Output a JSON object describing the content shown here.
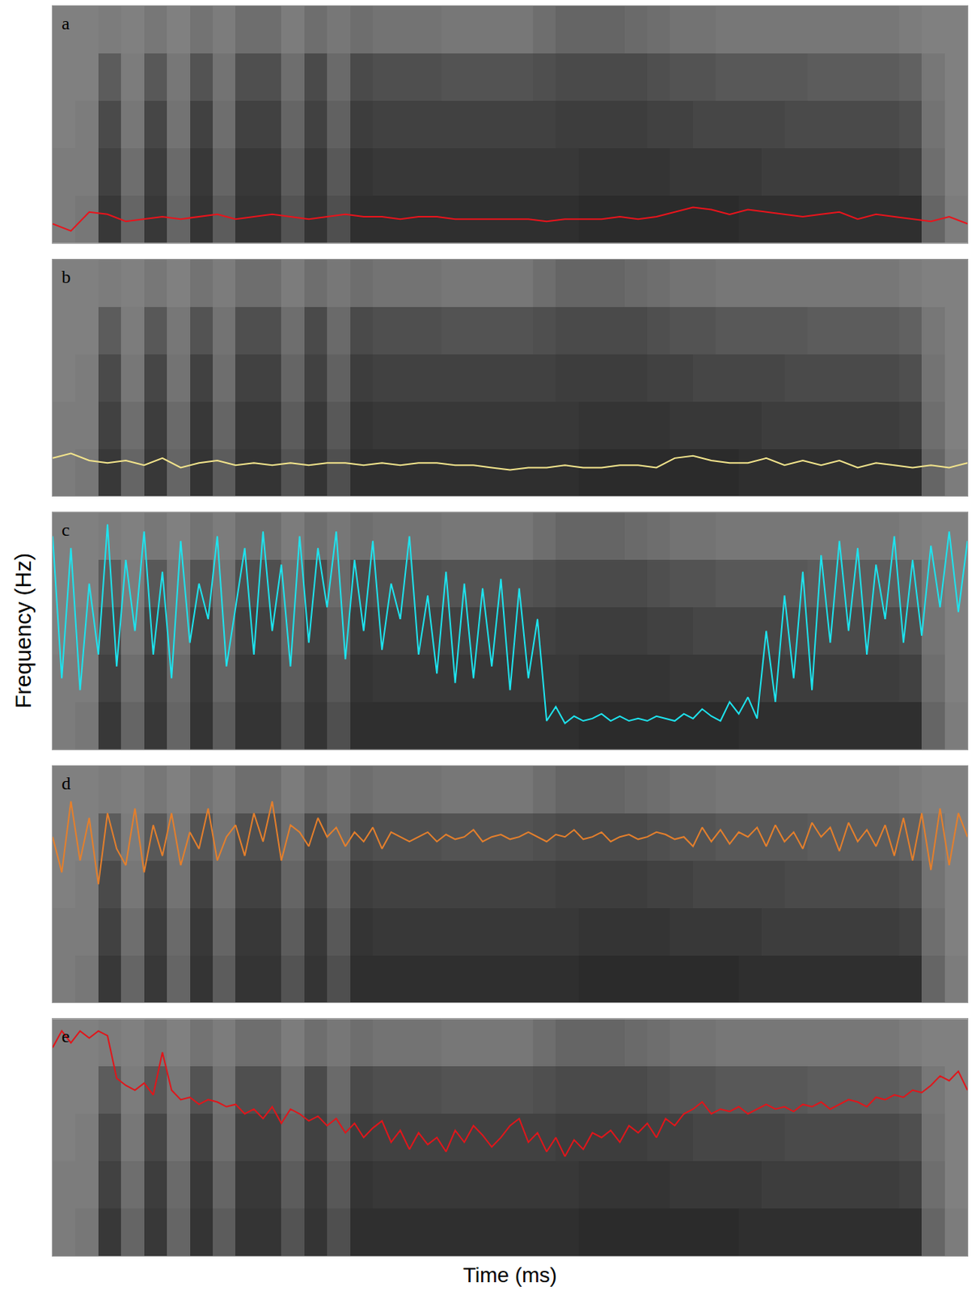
{
  "xlabel": "Time (ms)",
  "ylabel": "Frequency (Hz)",
  "spectrogram": {
    "x": [
      1.25,
      3.75,
      6.25,
      8.75,
      11.25,
      13.75,
      16.25,
      18.75,
      21.25,
      23.75,
      26.25,
      28.75,
      31.25,
      33.75,
      36.25,
      38.75,
      41.25,
      43.75,
      46.25,
      48.75,
      51.25,
      53.75,
      56.25,
      58.75,
      61.25,
      63.75,
      66.25,
      68.75,
      71.25,
      73.75,
      76.25,
      78.75,
      81.25,
      83.75,
      86.25,
      88.75,
      91.25,
      93.75,
      96.25,
      98.75
    ],
    "y": [
      10,
      30,
      50,
      70,
      90
    ],
    "zlim": [
      0,
      1
    ],
    "cells": [
      [
        0.05,
        0.1,
        0.8,
        0.3,
        0.8,
        0.3,
        0.85,
        0.4,
        0.85,
        0.85,
        0.5,
        0.85,
        0.55,
        0.9,
        0.9,
        0.9,
        0.9,
        0.9,
        0.9,
        0.9,
        0.9,
        0.9,
        0.9,
        0.95,
        0.95,
        0.95,
        0.95,
        0.95,
        0.95,
        0.95,
        0.9,
        0.9,
        0.9,
        0.9,
        0.9,
        0.9,
        0.9,
        0.9,
        0.3,
        0.05
      ],
      [
        0.05,
        0.05,
        0.7,
        0.2,
        0.75,
        0.25,
        0.8,
        0.3,
        0.8,
        0.8,
        0.4,
        0.8,
        0.45,
        0.85,
        0.8,
        0.8,
        0.8,
        0.8,
        0.8,
        0.8,
        0.8,
        0.8,
        0.8,
        0.85,
        0.85,
        0.85,
        0.85,
        0.8,
        0.8,
        0.8,
        0.8,
        0.75,
        0.75,
        0.75,
        0.75,
        0.75,
        0.75,
        0.7,
        0.2,
        0
      ],
      [
        0,
        0.05,
        0.6,
        0.1,
        0.65,
        0.15,
        0.7,
        0.2,
        0.7,
        0.7,
        0.3,
        0.7,
        0.35,
        0.75,
        0.7,
        0.7,
        0.7,
        0.7,
        0.7,
        0.7,
        0.7,
        0.7,
        0.75,
        0.75,
        0.75,
        0.75,
        0.7,
        0.7,
        0.65,
        0.65,
        0.65,
        0.65,
        0.6,
        0.6,
        0.6,
        0.6,
        0.6,
        0.55,
        0.15,
        0
      ],
      [
        0,
        0,
        0.4,
        0.05,
        0.45,
        0.1,
        0.5,
        0.15,
        0.55,
        0.55,
        0.2,
        0.6,
        0.25,
        0.6,
        0.55,
        0.55,
        0.55,
        0.5,
        0.5,
        0.5,
        0.5,
        0.55,
        0.6,
        0.6,
        0.6,
        0.6,
        0.55,
        0.5,
        0.5,
        0.45,
        0.45,
        0.45,
        0.45,
        0.4,
        0.4,
        0.4,
        0.4,
        0.35,
        0.1,
        0
      ],
      [
        0,
        0,
        0.05,
        0,
        0.1,
        0,
        0.15,
        0.05,
        0.2,
        0.2,
        0.05,
        0.2,
        0.1,
        0.2,
        0.15,
        0.15,
        0.15,
        0.1,
        0.1,
        0.1,
        0.1,
        0.2,
        0.3,
        0.3,
        0.3,
        0.25,
        0.2,
        0.15,
        0.15,
        0.1,
        0.1,
        0.1,
        0.1,
        0.1,
        0.1,
        0.1,
        0.1,
        0.05,
        0,
        0
      ]
    ]
  },
  "chart_data": [
    {
      "type": "line",
      "panel": "a",
      "xlim": [
        0,
        100
      ],
      "ylim": [
        0,
        100
      ],
      "xticks": [],
      "yticks": [],
      "tick_labels": false,
      "grid": false,
      "x": [
        0,
        2,
        4,
        6,
        8,
        10,
        12,
        14,
        16,
        18,
        20,
        22,
        24,
        26,
        28,
        30,
        32,
        34,
        36,
        38,
        40,
        42,
        44,
        46,
        48,
        50,
        52,
        54,
        56,
        58,
        60,
        62,
        64,
        66,
        68,
        70,
        72,
        74,
        76,
        78,
        80,
        82,
        84,
        86,
        88,
        90,
        92,
        94,
        96,
        98,
        100
      ],
      "series": [
        {
          "color": "#e8141c",
          "values": [
            8,
            5,
            13,
            12,
            9,
            10,
            11,
            10,
            11,
            12,
            10,
            11,
            12,
            11,
            10,
            11,
            12,
            11,
            11,
            10,
            11,
            11,
            10,
            10,
            10,
            10,
            10,
            9,
            10,
            10,
            10,
            11,
            10,
            11,
            13,
            15,
            14,
            12,
            14,
            13,
            12,
            11,
            12,
            13,
            10,
            12,
            11,
            10,
            9,
            11,
            8
          ]
        }
      ]
    },
    {
      "type": "line",
      "panel": "b",
      "xlim": [
        0,
        100
      ],
      "ylim": [
        0,
        100
      ],
      "xticks": [],
      "yticks": [],
      "tick_labels": false,
      "grid": false,
      "x": [
        0,
        2,
        4,
        6,
        8,
        10,
        12,
        14,
        16,
        18,
        20,
        22,
        24,
        26,
        28,
        30,
        32,
        34,
        36,
        38,
        40,
        42,
        44,
        46,
        48,
        50,
        52,
        54,
        56,
        58,
        60,
        62,
        64,
        66,
        68,
        70,
        72,
        74,
        76,
        78,
        80,
        82,
        84,
        86,
        88,
        90,
        92,
        94,
        96,
        98,
        100
      ],
      "series": [
        {
          "color": "#f3e48c",
          "values": [
            16,
            18,
            15,
            14,
            15,
            13,
            16,
            12,
            14,
            15,
            13,
            14,
            13,
            14,
            13,
            14,
            14,
            13,
            14,
            13,
            14,
            14,
            13,
            13,
            12,
            11,
            12,
            12,
            13,
            12,
            12,
            13,
            13,
            12,
            16,
            17,
            15,
            14,
            14,
            16,
            13,
            15,
            13,
            15,
            12,
            14,
            13,
            12,
            13,
            12,
            14
          ]
        }
      ]
    },
    {
      "type": "line",
      "panel": "c",
      "xlim": [
        0,
        100
      ],
      "ylim": [
        0,
        100
      ],
      "xticks": [],
      "yticks": [],
      "tick_labels": false,
      "grid": false,
      "x": [
        0,
        1,
        2,
        3,
        4,
        5,
        6,
        7,
        8,
        9,
        10,
        11,
        12,
        13,
        14,
        15,
        16,
        17,
        18,
        19,
        20,
        21,
        22,
        23,
        24,
        25,
        26,
        27,
        28,
        29,
        30,
        31,
        32,
        33,
        34,
        35,
        36,
        37,
        38,
        39,
        40,
        41,
        42,
        43,
        44,
        45,
        46,
        47,
        48,
        49,
        50,
        51,
        52,
        53,
        54,
        55,
        56,
        57,
        58,
        59,
        60,
        61,
        62,
        63,
        64,
        65,
        66,
        67,
        68,
        69,
        70,
        71,
        72,
        73,
        74,
        75,
        76,
        77,
        78,
        79,
        80,
        81,
        82,
        83,
        84,
        85,
        86,
        87,
        88,
        89,
        90,
        91,
        92,
        93,
        94,
        95,
        96,
        97,
        98,
        99,
        100
      ],
      "series": [
        {
          "color": "#1ee3ee",
          "values": [
            90,
            30,
            85,
            25,
            70,
            40,
            95,
            35,
            80,
            50,
            92,
            40,
            75,
            30,
            88,
            45,
            70,
            55,
            90,
            35,
            60,
            85,
            40,
            92,
            50,
            78,
            35,
            90,
            45,
            85,
            60,
            92,
            38,
            80,
            50,
            88,
            42,
            70,
            55,
            90,
            40,
            65,
            32,
            75,
            28,
            70,
            30,
            68,
            35,
            72,
            25,
            68,
            30,
            55,
            12,
            18,
            11,
            14,
            12,
            13,
            15,
            12,
            14,
            12,
            13,
            12,
            14,
            13,
            12,
            15,
            13,
            17,
            14,
            12,
            20,
            15,
            22,
            13,
            50,
            20,
            65,
            30,
            75,
            25,
            82,
            45,
            88,
            50,
            85,
            40,
            78,
            55,
            90,
            45,
            80,
            48,
            86,
            60,
            92,
            58,
            88
          ]
        }
      ]
    },
    {
      "type": "line",
      "panel": "d",
      "xlim": [
        0,
        100
      ],
      "ylim": [
        0,
        100
      ],
      "xticks": [],
      "yticks": [],
      "tick_labels": false,
      "grid": false,
      "x": [
        0,
        1,
        2,
        3,
        4,
        5,
        6,
        7,
        8,
        9,
        10,
        11,
        12,
        13,
        14,
        15,
        16,
        17,
        18,
        19,
        20,
        21,
        22,
        23,
        24,
        25,
        26,
        27,
        28,
        29,
        30,
        31,
        32,
        33,
        34,
        35,
        36,
        37,
        38,
        39,
        40,
        41,
        42,
        43,
        44,
        45,
        46,
        47,
        48,
        49,
        50,
        51,
        52,
        53,
        54,
        55,
        56,
        57,
        58,
        59,
        60,
        61,
        62,
        63,
        64,
        65,
        66,
        67,
        68,
        69,
        70,
        71,
        72,
        73,
        74,
        75,
        76,
        77,
        78,
        79,
        80,
        81,
        82,
        83,
        84,
        85,
        86,
        87,
        88,
        89,
        90,
        91,
        92,
        93,
        94,
        95,
        96,
        97,
        98,
        99,
        100
      ],
      "series": [
        {
          "color": "#e47f2c",
          "values": [
            70,
            55,
            85,
            60,
            78,
            50,
            80,
            65,
            58,
            82,
            55,
            75,
            62,
            80,
            58,
            72,
            65,
            82,
            60,
            70,
            75,
            62,
            80,
            68,
            85,
            60,
            75,
            72,
            66,
            78,
            70,
            74,
            66,
            72,
            68,
            74,
            65,
            72,
            70,
            68,
            70,
            72,
            68,
            71,
            69,
            70,
            73,
            68,
            70,
            71,
            69,
            70,
            72,
            70,
            68,
            71,
            70,
            73,
            69,
            70,
            72,
            68,
            70,
            71,
            69,
            70,
            72,
            71,
            69,
            70,
            66,
            74,
            68,
            73,
            67,
            72,
            70,
            74,
            66,
            75,
            68,
            72,
            65,
            76,
            70,
            74,
            64,
            76,
            68,
            73,
            66,
            75,
            62,
            78,
            60,
            80,
            56,
            82,
            58,
            80,
            70
          ]
        }
      ]
    },
    {
      "type": "line",
      "panel": "e",
      "xlim": [
        0,
        100
      ],
      "ylim": [
        0,
        100
      ],
      "xticks": [],
      "yticks": [],
      "tick_labels": false,
      "grid": false,
      "x": [
        0,
        1,
        2,
        3,
        4,
        5,
        6,
        7,
        8,
        9,
        10,
        11,
        12,
        13,
        14,
        15,
        16,
        17,
        18,
        19,
        20,
        21,
        22,
        23,
        24,
        25,
        26,
        27,
        28,
        29,
        30,
        31,
        32,
        33,
        34,
        35,
        36,
        37,
        38,
        39,
        40,
        41,
        42,
        43,
        44,
        45,
        46,
        47,
        48,
        49,
        50,
        51,
        52,
        53,
        54,
        55,
        56,
        57,
        58,
        59,
        60,
        61,
        62,
        63,
        64,
        65,
        66,
        67,
        68,
        69,
        70,
        71,
        72,
        73,
        74,
        75,
        76,
        77,
        78,
        79,
        80,
        81,
        82,
        83,
        84,
        85,
        86,
        87,
        88,
        89,
        90,
        91,
        92,
        93,
        94,
        95,
        96,
        97,
        98,
        99,
        100
      ],
      "series": [
        {
          "color": "#e0161b",
          "values": [
            88,
            95,
            90,
            95,
            92,
            95,
            93,
            75,
            72,
            70,
            73,
            68,
            86,
            70,
            66,
            67,
            64,
            66,
            65,
            63,
            64,
            60,
            62,
            58,
            63,
            56,
            62,
            60,
            57,
            59,
            55,
            58,
            52,
            56,
            50,
            54,
            57,
            48,
            53,
            45,
            52,
            47,
            50,
            44,
            53,
            48,
            55,
            51,
            46,
            50,
            55,
            58,
            48,
            52,
            44,
            50,
            42,
            49,
            45,
            52,
            50,
            53,
            48,
            55,
            52,
            56,
            50,
            58,
            55,
            60,
            62,
            65,
            60,
            62,
            61,
            63,
            60,
            62,
            64,
            62,
            63,
            61,
            64,
            63,
            65,
            62,
            64,
            66,
            65,
            63,
            67,
            66,
            68,
            67,
            70,
            69,
            72,
            76,
            74,
            78,
            70
          ]
        }
      ]
    }
  ]
}
